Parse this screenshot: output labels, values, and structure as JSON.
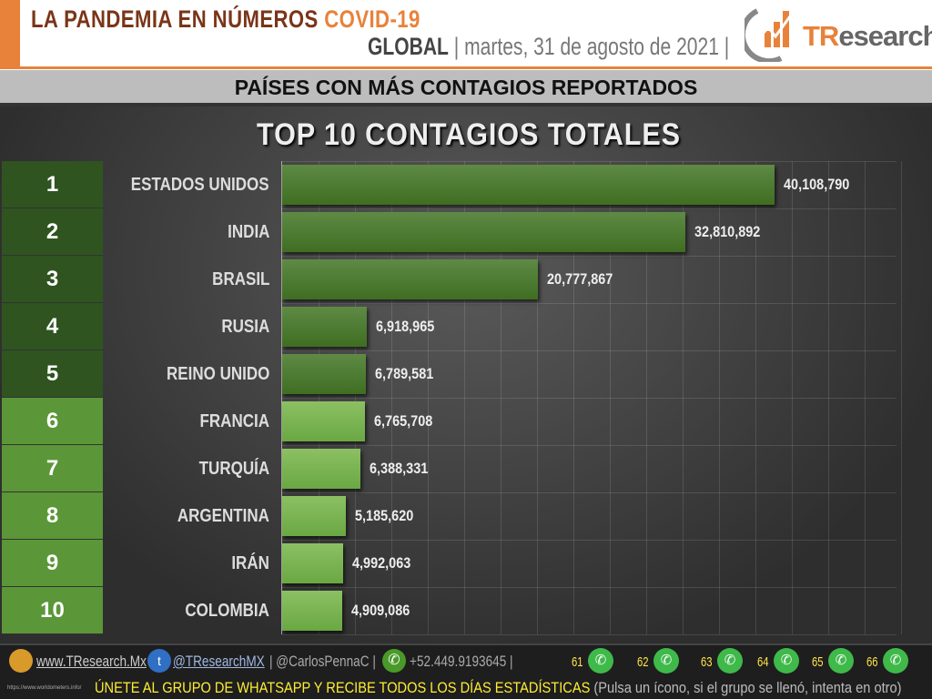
{
  "header": {
    "title_part1": "LA PANDEMIA EN NÚMEROS",
    "title_part2": "COVID-19",
    "scope": "GLOBAL",
    "date": "| martes, 31 de agosto de 2021 |",
    "logo_text_accent": "TR",
    "logo_text_rest": "esearch"
  },
  "subtitle": "PAÍSES CON MÁS CONTAGIOS REPORTADOS",
  "colors": {
    "orange": "#e8823a",
    "bar_top5": "#3f6e22",
    "bar_rest": "#6aa843",
    "rank_top5": "#2f5420",
    "rank_rest": "#5b9638"
  },
  "chart_data": {
    "type": "bar",
    "orientation": "horizontal",
    "title": "TOP 10 CONTAGIOS TOTALES",
    "ranks": [
      "1",
      "2",
      "3",
      "4",
      "5",
      "6",
      "7",
      "8",
      "9",
      "10"
    ],
    "categories": [
      "ESTADOS UNIDOS",
      "INDIA",
      "BRASIL",
      "RUSIA",
      "REINO UNIDO",
      "FRANCIA",
      "TURQUÍA",
      "ARGENTINA",
      "IRÁN",
      "COLOMBIA"
    ],
    "values": [
      40108790,
      32810892,
      20777867,
      6918965,
      6789581,
      6765708,
      6388331,
      5185620,
      4992063,
      4909086
    ],
    "labels": [
      "40,108,790",
      "32,810,892",
      "20,777,867",
      "6,918,965",
      "6,789,581",
      "6,765,708",
      "6,388,331",
      "5,185,620",
      "4,992,063",
      "4,909,086"
    ],
    "xlim": [
      0,
      50000000
    ],
    "grid": true
  },
  "footer": {
    "website": "www.TResearch.Mx",
    "twitter": "@TResearchMX",
    "handle2": "| @CarlosPennaC |",
    "phone": "+52.449.9193645 |",
    "whatsapp_groups": [
      "61",
      "62",
      "63",
      "64",
      "65",
      "66"
    ],
    "join": "ÚNETE AL GRUPO DE WHATSAPP Y RECIBE TODOS LOS DÍAS ESTADÍSTICAS",
    "join_note": "(Pulsa un ícono, si el grupo se llenó, intenta en otro)",
    "source": "https://www.worldometers.info/"
  }
}
